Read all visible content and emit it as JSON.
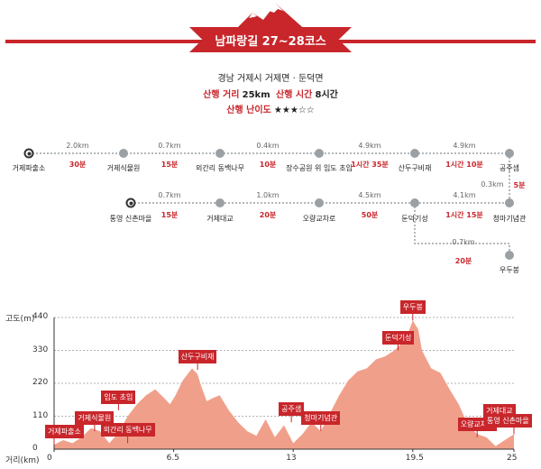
{
  "title": "남파랑길 27~28코스",
  "info": {
    "location": "경남 거제시 거제면 · 둔덕면",
    "dist_label": "산행 거리",
    "dist_value": "25km",
    "time_label": "산행 시간",
    "time_value": "8시간",
    "diff_label": "산행 난이도",
    "diff_value": "★★★☆☆"
  },
  "route": {
    "row1": [
      {
        "name": "거제파출소",
        "dist": "2.0km",
        "time": "30분"
      },
      {
        "name": "거제식물원",
        "dist": "0.7km",
        "time": "15분"
      },
      {
        "name": "외간리 동백나무",
        "dist": "0.4km",
        "time": "10분"
      },
      {
        "name": "장수공원 위 임도 초입",
        "dist": "4.9km",
        "time": "1시간 35분"
      },
      {
        "name": "산두구비재",
        "dist": "4.9km",
        "time": "1시간 10분"
      },
      {
        "name": "공주샘"
      }
    ],
    "connector": {
      "dist": "0.3km",
      "time": "5분"
    },
    "row2": [
      {
        "name": "통영 신촌마을",
        "dist": "0.7km",
        "time": "15분"
      },
      {
        "name": "거제대교",
        "dist": "1.0km",
        "time": "20분"
      },
      {
        "name": "오량교차로",
        "dist": "4.5km",
        "time": "50분"
      },
      {
        "name": "둔덕기성",
        "dist": "4.1km",
        "time": "1시간 15분"
      },
      {
        "name": "청마기념관"
      }
    ],
    "branch": {
      "name": "우두봉",
      "dist": "0.7km",
      "time": "20분"
    }
  },
  "chart_data": {
    "type": "area",
    "ylabel": "고도(m)",
    "xlabel": "거리(km)",
    "yticks": [
      0,
      110,
      220,
      330,
      440
    ],
    "xticks": [
      "0",
      "6.5",
      "13",
      "19.5",
      "25"
    ],
    "xlim": [
      0,
      25
    ],
    "ylim": [
      0,
      440
    ],
    "series": [
      {
        "x": [
          0,
          0.5,
          1,
          1.5,
          2,
          2.5,
          3,
          3.5,
          4,
          4.5,
          5,
          5.5,
          6,
          6.3,
          6.6,
          7,
          7.5,
          7.8,
          8,
          8.3,
          8.6,
          9,
          9.5,
          10,
          10.5,
          11,
          11.5,
          12,
          12.5,
          13,
          13.5,
          14,
          14.5,
          15,
          15.5,
          16,
          16.5,
          17,
          17.5,
          18,
          18.5,
          19,
          19.2,
          19.5,
          19.8,
          20,
          20.5,
          21,
          21.5,
          22,
          22.5,
          23,
          23.5,
          24,
          24.5,
          25
        ],
        "y": [
          15,
          30,
          20,
          40,
          70,
          60,
          20,
          55,
          110,
          150,
          180,
          200,
          170,
          150,
          180,
          230,
          270,
          250,
          210,
          160,
          170,
          180,
          130,
          90,
          60,
          45,
          100,
          40,
          80,
          20,
          50,
          90,
          60,
          120,
          180,
          230,
          260,
          270,
          300,
          310,
          330,
          360,
          380,
          430,
          400,
          330,
          270,
          255,
          200,
          150,
          80,
          50,
          40,
          10,
          30,
          50
        ]
      }
    ],
    "labels": [
      {
        "text": "거제파출소",
        "x": 0,
        "y": 15
      },
      {
        "text": "거제식물원",
        "x": 2.2,
        "y": 60
      },
      {
        "text": "임도 초입",
        "x": 3.5,
        "y": 130
      },
      {
        "text": "외간리 동백나무",
        "x": 4,
        "y": 20
      },
      {
        "text": "산두구비재",
        "x": 7.8,
        "y": 265
      },
      {
        "text": "공주샘",
        "x": 12.9,
        "y": 90
      },
      {
        "text": "청마기념관",
        "x": 14.5,
        "y": 60
      },
      {
        "text": "둔덕기성",
        "x": 18.7,
        "y": 330
      },
      {
        "text": "우두봉",
        "x": 19.5,
        "y": 430
      },
      {
        "text": "오량교차로",
        "x": 23,
        "y": 40
      },
      {
        "text": "거제대교",
        "x": 24.2,
        "y": 85
      },
      {
        "text": "통영 신촌마을",
        "x": 25,
        "y": 50
      }
    ]
  }
}
